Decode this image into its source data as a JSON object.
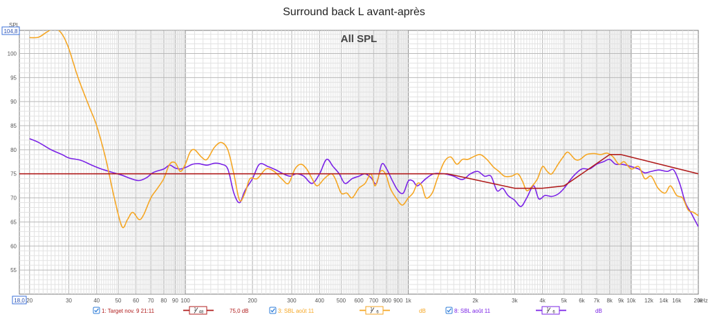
{
  "chart_data": {
    "type": "line",
    "title": "Surround back L avant-après",
    "subtitle": "All SPL",
    "ylabel": "SPL",
    "xunit": "kHz",
    "xscale": "log",
    "xlim": [
      18,
      20000
    ],
    "ylim": [
      50,
      104.8
    ],
    "ymax_label": "104,8",
    "xmin_label": "18,0",
    "grid": true,
    "y_ticks": [
      55,
      60,
      65,
      70,
      75,
      80,
      85,
      90,
      95,
      100
    ],
    "x_ticks": [
      {
        "v": 20,
        "label": "20"
      },
      {
        "v": 30,
        "label": "30"
      },
      {
        "v": 40,
        "label": "40"
      },
      {
        "v": 50,
        "label": "50"
      },
      {
        "v": 60,
        "label": "60"
      },
      {
        "v": 70,
        "label": "70"
      },
      {
        "v": 80,
        "label": "80"
      },
      {
        "v": 90,
        "label": "90"
      },
      {
        "v": 100,
        "label": "100"
      },
      {
        "v": 200,
        "label": "200"
      },
      {
        "v": 300,
        "label": "300"
      },
      {
        "v": 400,
        "label": "400"
      },
      {
        "v": 500,
        "label": "500"
      },
      {
        "v": 600,
        "label": "600"
      },
      {
        "v": 700,
        "label": "700"
      },
      {
        "v": 800,
        "label": "800"
      },
      {
        "v": 900,
        "label": "900"
      },
      {
        "v": 1000,
        "label": "1k"
      },
      {
        "v": 2000,
        "label": "2k"
      },
      {
        "v": 3000,
        "label": "3k"
      },
      {
        "v": 4000,
        "label": "4k"
      },
      {
        "v": 5000,
        "label": "5k"
      },
      {
        "v": 6000,
        "label": "6k"
      },
      {
        "v": 7000,
        "label": "7k"
      },
      {
        "v": 8000,
        "label": "8k"
      },
      {
        "v": 9000,
        "label": "9k"
      },
      {
        "v": 10000,
        "label": "10k"
      },
      {
        "v": 12000,
        "label": "12k"
      },
      {
        "v": 14000,
        "label": "14k"
      },
      {
        "v": 16000,
        "label": "16k"
      },
      {
        "v": 20000,
        "label": "20k"
      }
    ],
    "series": [
      {
        "name": "1: Target nov. 9 21:11",
        "color": "#b01c1c",
        "smoothing": "1/48",
        "value": "75,0 dB",
        "points": [
          [
            18,
            75
          ],
          [
            1000,
            75
          ],
          [
            1500,
            75
          ],
          [
            3000,
            72
          ],
          [
            4000,
            72
          ],
          [
            5000,
            72.5
          ],
          [
            6000,
            75
          ],
          [
            8000,
            79
          ],
          [
            9000,
            79
          ],
          [
            20000,
            75
          ]
        ]
      },
      {
        "name": "3: SBL août 11",
        "color": "#f5a623",
        "smoothing": "1/6",
        "value": "dB",
        "points": [
          [
            20,
            103.3
          ],
          [
            22,
            103.4
          ],
          [
            24,
            104.5
          ],
          [
            26,
            105.2
          ],
          [
            28,
            104
          ],
          [
            30,
            101
          ],
          [
            33,
            95
          ],
          [
            37,
            89
          ],
          [
            40,
            85
          ],
          [
            44,
            78
          ],
          [
            48,
            70
          ],
          [
            52,
            64
          ],
          [
            55,
            65.5
          ],
          [
            58,
            67
          ],
          [
            62,
            65.5
          ],
          [
            65,
            66.5
          ],
          [
            70,
            70
          ],
          [
            75,
            72
          ],
          [
            80,
            74
          ],
          [
            85,
            77
          ],
          [
            90,
            77.3
          ],
          [
            95,
            75.5
          ],
          [
            100,
            77
          ],
          [
            105,
            79.5
          ],
          [
            110,
            80
          ],
          [
            118,
            78.5
          ],
          [
            125,
            78
          ],
          [
            135,
            80.5
          ],
          [
            145,
            81.5
          ],
          [
            155,
            80
          ],
          [
            165,
            75
          ],
          [
            175,
            69.5
          ],
          [
            185,
            71
          ],
          [
            195,
            74
          ],
          [
            210,
            74
          ],
          [
            230,
            76
          ],
          [
            250,
            75.5
          ],
          [
            270,
            74
          ],
          [
            290,
            73
          ],
          [
            310,
            76
          ],
          [
            330,
            77
          ],
          [
            350,
            76
          ],
          [
            370,
            74
          ],
          [
            390,
            72.5
          ],
          [
            420,
            74
          ],
          [
            450,
            75
          ],
          [
            470,
            74
          ],
          [
            500,
            71
          ],
          [
            530,
            71
          ],
          [
            560,
            70
          ],
          [
            600,
            72
          ],
          [
            640,
            73
          ],
          [
            680,
            75
          ],
          [
            710,
            72.5
          ],
          [
            750,
            75.5
          ],
          [
            790,
            75
          ],
          [
            830,
            72
          ],
          [
            880,
            70
          ],
          [
            940,
            68.5
          ],
          [
            1000,
            70
          ],
          [
            1050,
            71
          ],
          [
            1100,
            73
          ],
          [
            1150,
            72.5
          ],
          [
            1200,
            70
          ],
          [
            1280,
            71
          ],
          [
            1350,
            74
          ],
          [
            1450,
            77.5
          ],
          [
            1550,
            78.5
          ],
          [
            1650,
            77
          ],
          [
            1750,
            78
          ],
          [
            1850,
            78
          ],
          [
            1950,
            78.5
          ],
          [
            2100,
            79
          ],
          [
            2250,
            78
          ],
          [
            2400,
            76.5
          ],
          [
            2550,
            75.5
          ],
          [
            2700,
            74.5
          ],
          [
            2900,
            74.5
          ],
          [
            3100,
            75
          ],
          [
            3250,
            73.5
          ],
          [
            3400,
            71.5
          ],
          [
            3600,
            72.5
          ],
          [
            3800,
            74
          ],
          [
            4000,
            76.5
          ],
          [
            4200,
            75.5
          ],
          [
            4400,
            75
          ],
          [
            4700,
            77
          ],
          [
            4950,
            78.5
          ],
          [
            5200,
            79.5
          ],
          [
            5600,
            78
          ],
          [
            5900,
            78
          ],
          [
            6300,
            79
          ],
          [
            6800,
            79.2
          ],
          [
            7300,
            79
          ],
          [
            7800,
            79.3
          ],
          [
            8300,
            78.5
          ],
          [
            8800,
            77
          ],
          [
            9300,
            77.5
          ],
          [
            10000,
            76
          ],
          [
            10800,
            76.5
          ],
          [
            11500,
            74
          ],
          [
            12300,
            74.5
          ],
          [
            13200,
            72
          ],
          [
            14200,
            71
          ],
          [
            15000,
            72.5
          ],
          [
            16000,
            70.5
          ],
          [
            17000,
            70
          ],
          [
            18000,
            67.5
          ],
          [
            19000,
            67
          ],
          [
            20000,
            66.3
          ]
        ]
      },
      {
        "name": "8: SBL août 11",
        "color": "#7a22e6",
        "smoothing": "1/6",
        "value": "dB",
        "points": [
          [
            20,
            82.3
          ],
          [
            22,
            81.5
          ],
          [
            25,
            80
          ],
          [
            28,
            79
          ],
          [
            30,
            78.3
          ],
          [
            34,
            77.8
          ],
          [
            38,
            76.8
          ],
          [
            42,
            76
          ],
          [
            47,
            75.3
          ],
          [
            52,
            74.7
          ],
          [
            57,
            74
          ],
          [
            62,
            73.6
          ],
          [
            67,
            74.2
          ],
          [
            72,
            75.3
          ],
          [
            80,
            76
          ],
          [
            85,
            76.8
          ],
          [
            90,
            76.2
          ],
          [
            95,
            76
          ],
          [
            100,
            76.3
          ],
          [
            108,
            77
          ],
          [
            115,
            77.1
          ],
          [
            125,
            76.8
          ],
          [
            135,
            77.2
          ],
          [
            145,
            77
          ],
          [
            155,
            76
          ],
          [
            165,
            71
          ],
          [
            175,
            69
          ],
          [
            185,
            71.5
          ],
          [
            200,
            74
          ],
          [
            215,
            77
          ],
          [
            235,
            76.5
          ],
          [
            255,
            75.8
          ],
          [
            275,
            75
          ],
          [
            295,
            74.5
          ],
          [
            315,
            75
          ],
          [
            340,
            74.5
          ],
          [
            370,
            73
          ],
          [
            400,
            75
          ],
          [
            430,
            78
          ],
          [
            460,
            76.5
          ],
          [
            490,
            75
          ],
          [
            520,
            73
          ],
          [
            560,
            74
          ],
          [
            600,
            74.5
          ],
          [
            640,
            75
          ],
          [
            680,
            74.2
          ],
          [
            720,
            73
          ],
          [
            760,
            77
          ],
          [
            800,
            76
          ],
          [
            850,
            73.5
          ],
          [
            900,
            71.5
          ],
          [
            950,
            71
          ],
          [
            1000,
            73.5
          ],
          [
            1050,
            73.5
          ],
          [
            1100,
            72.5
          ],
          [
            1200,
            74
          ],
          [
            1300,
            75
          ],
          [
            1450,
            75
          ],
          [
            1600,
            74.5
          ],
          [
            1750,
            73.8
          ],
          [
            1900,
            75
          ],
          [
            2050,
            75.5
          ],
          [
            2200,
            74.5
          ],
          [
            2350,
            74.5
          ],
          [
            2500,
            71.5
          ],
          [
            2650,
            72
          ],
          [
            2800,
            70.5
          ],
          [
            3000,
            69.5
          ],
          [
            3200,
            68.2
          ],
          [
            3400,
            70
          ],
          [
            3650,
            72.5
          ],
          [
            3850,
            69.8
          ],
          [
            4100,
            70.5
          ],
          [
            4400,
            70.3
          ],
          [
            4700,
            70.8
          ],
          [
            5000,
            72
          ],
          [
            5500,
            74.5
          ],
          [
            6000,
            76
          ],
          [
            6500,
            76
          ],
          [
            7000,
            77
          ],
          [
            7500,
            77.5
          ],
          [
            8000,
            78
          ],
          [
            8500,
            77
          ],
          [
            9000,
            77
          ],
          [
            9500,
            76.8
          ],
          [
            10000,
            76.5
          ],
          [
            10800,
            76
          ],
          [
            11500,
            75.2
          ],
          [
            12300,
            75.5
          ],
          [
            13300,
            75.8
          ],
          [
            14500,
            75.5
          ],
          [
            15500,
            75.8
          ],
          [
            16500,
            73
          ],
          [
            17500,
            69
          ],
          [
            18500,
            67
          ],
          [
            20000,
            64
          ]
        ]
      }
    ]
  },
  "legend": {
    "items": [
      {
        "label": "1: Target nov. 9 21:11",
        "smooth_num": "1",
        "smooth_den": "48",
        "value": "75,0 dB",
        "color": "#b01c1c"
      },
      {
        "label": "3: SBL août 11",
        "smooth_num": "1",
        "smooth_den": "6",
        "value": "dB",
        "color": "#f5a623"
      },
      {
        "label": "8: SBL août 11",
        "smooth_num": "1",
        "smooth_den": "6",
        "value": "dB",
        "color": "#7a22e6"
      }
    ]
  }
}
